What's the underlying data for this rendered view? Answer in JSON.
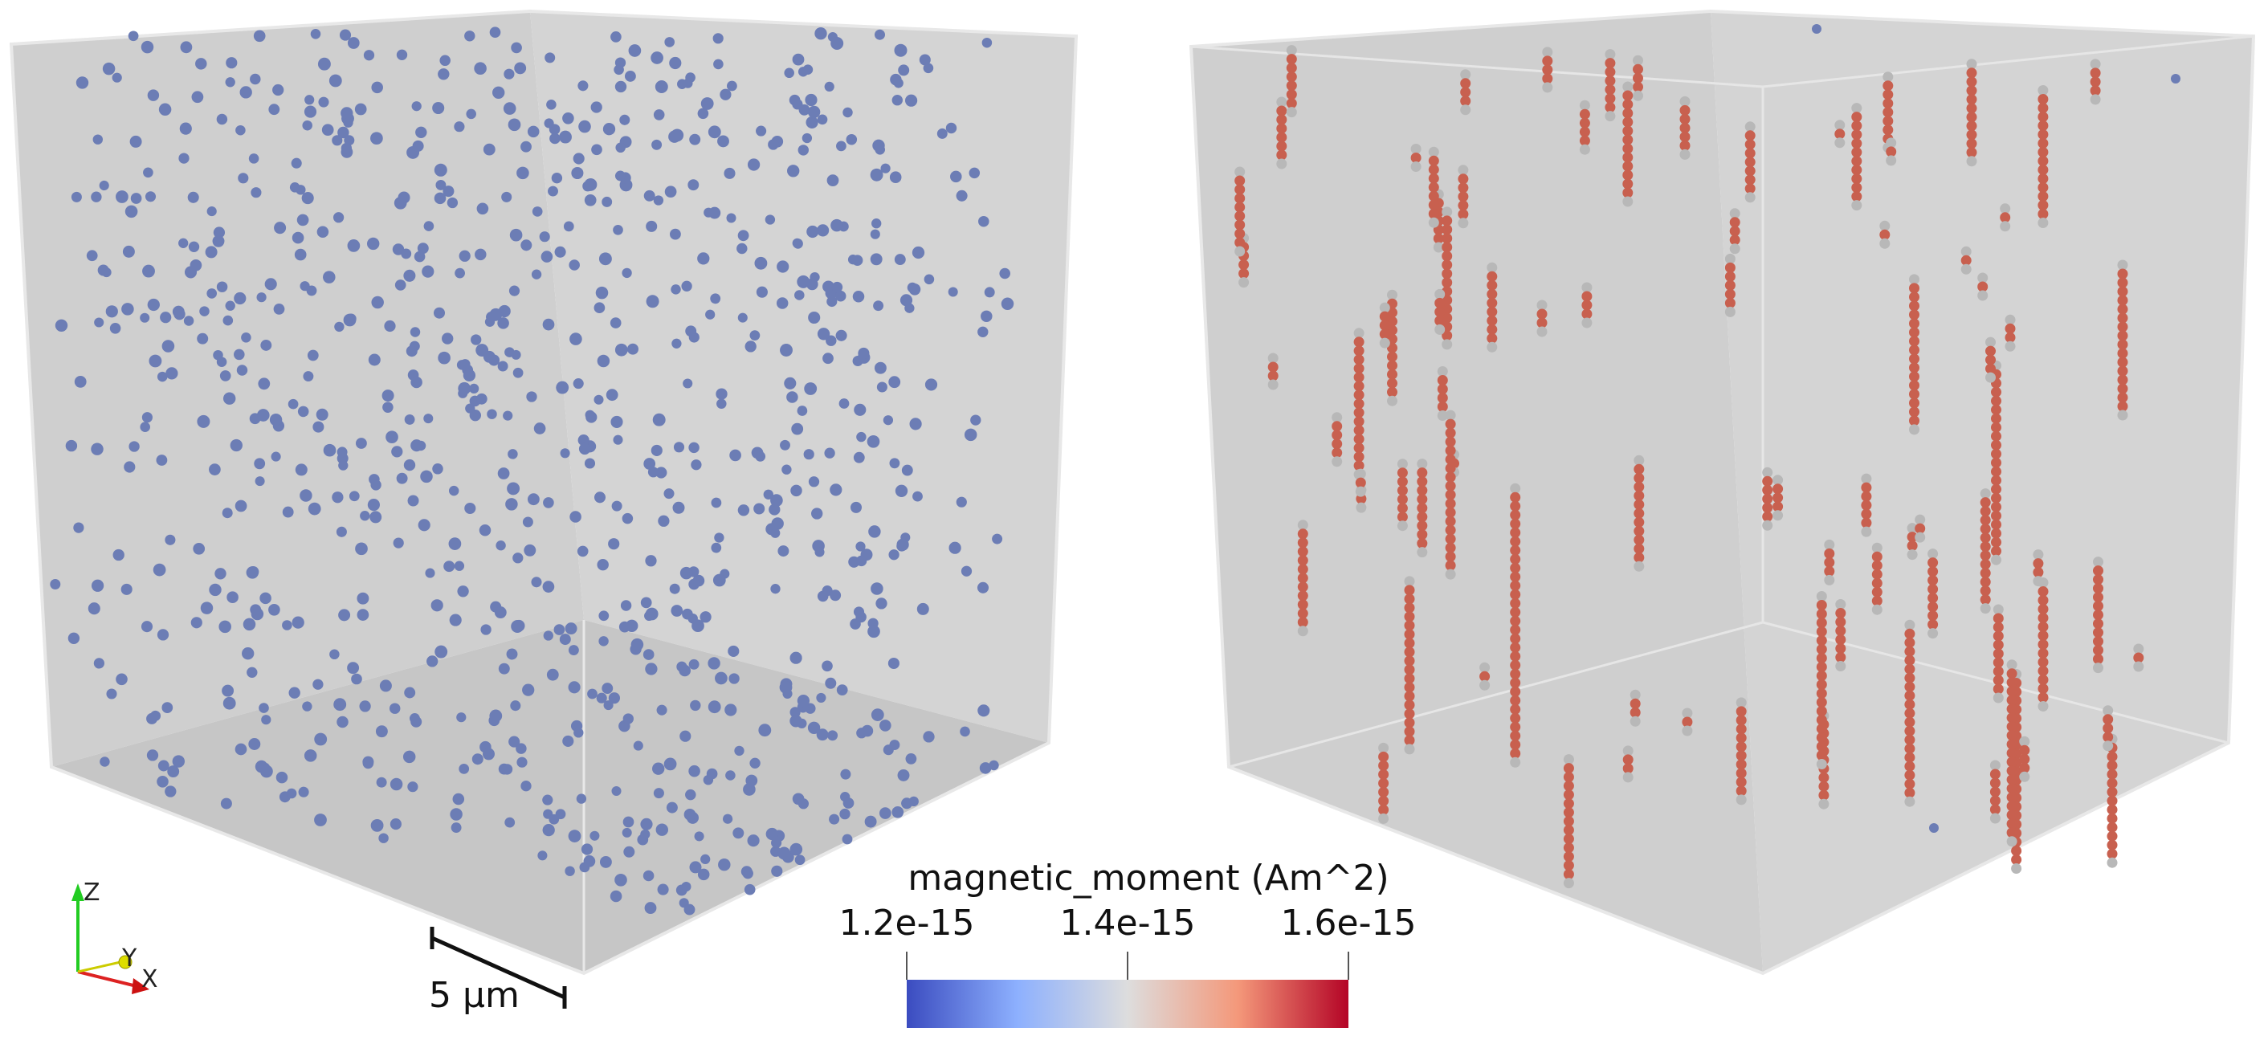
{
  "colorbar": {
    "title": "magnetic_moment (Am^2)",
    "ticks": [
      "1.2e-15",
      "1.4e-15",
      "1.6e-15"
    ],
    "range": [
      1.2e-15,
      1.6e-15
    ],
    "colors": {
      "low": "#3b4cc0",
      "mid": "#dddddd",
      "high": "#b40426"
    }
  },
  "scale_bar": {
    "label": "5 µm"
  },
  "axes": {
    "z": "Z",
    "y": "Y",
    "x": "X",
    "colors": {
      "z": "#22cc22",
      "y": "#dddd00",
      "x": "#dd2222"
    }
  },
  "colors": {
    "box_face": "#cfcfcf",
    "box_edge": "#e6e6e6",
    "left_particle": "#6c7db5",
    "right_particle": "#c8604f",
    "end_particle": "#b8b8b8"
  }
}
